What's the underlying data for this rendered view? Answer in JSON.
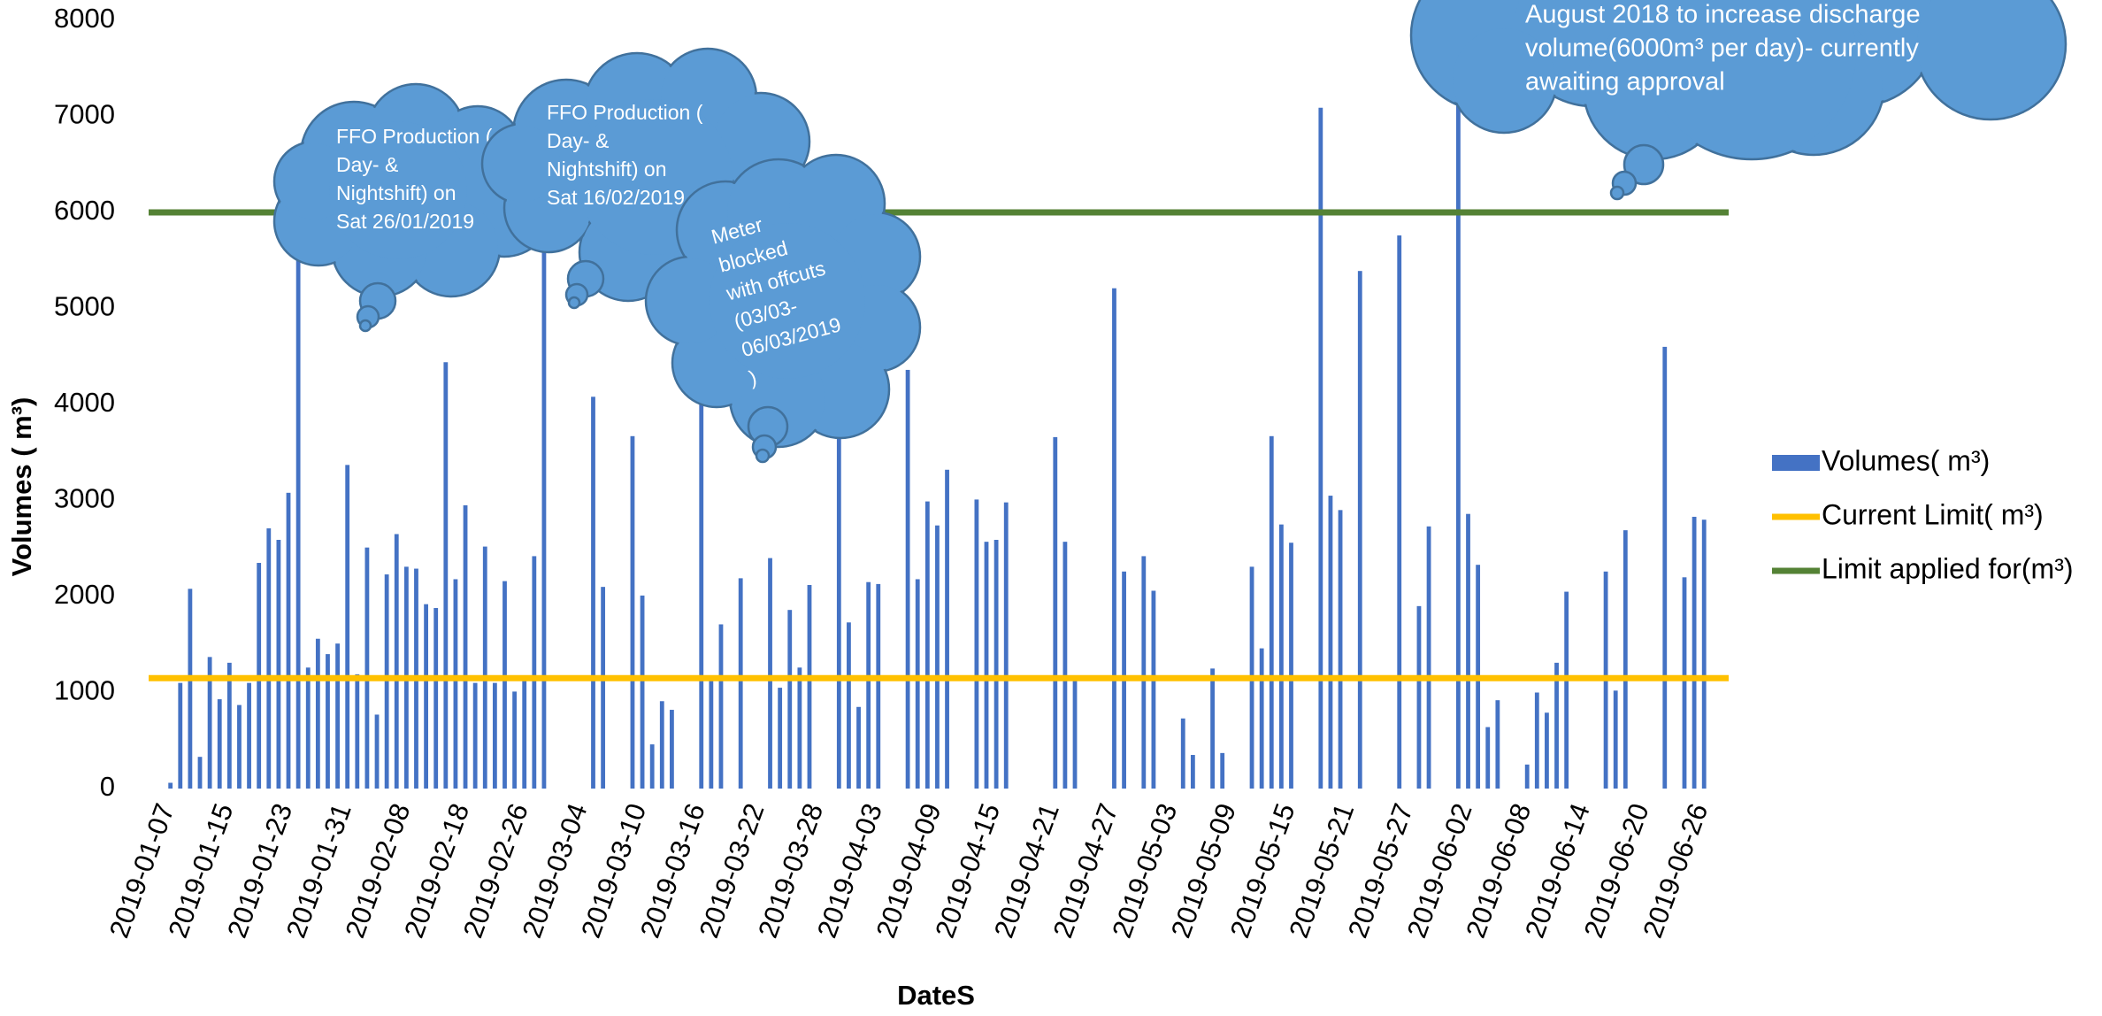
{
  "chart_data": {
    "type": "bar",
    "y_label": "Volumes ( m³)",
    "x_label": "DateS",
    "series": [
      {
        "name": "Volumes( m³)",
        "color": "#4472c4",
        "values": [
          0,
          60,
          1100,
          2080,
          330,
          1370,
          930,
          1310,
          870,
          1100,
          2350,
          2710,
          2590,
          3080,
          5530,
          1260,
          1560,
          1400,
          1510,
          3370,
          1190,
          2510,
          770,
          2230,
          2650,
          2310,
          2290,
          1920,
          1880,
          4440,
          2180,
          2950,
          1100,
          2520,
          1100,
          2160,
          1010,
          1150,
          2420,
          5700,
          0,
          0,
          0,
          0,
          4080,
          2100,
          0,
          0,
          3670,
          2010,
          460,
          910,
          820,
          0,
          0,
          4300,
          1150,
          1710,
          0,
          2190,
          0,
          0,
          2400,
          1050,
          1860,
          1260,
          2120,
          0,
          0,
          4300,
          1730,
          850,
          2150,
          2130,
          0,
          0,
          4360,
          2180,
          2990,
          2740,
          3320,
          0,
          0,
          3010,
          2570,
          2590,
          2980,
          0,
          0,
          0,
          0,
          3660,
          2570,
          1150,
          0,
          0,
          0,
          5210,
          2260,
          0,
          2420,
          2060,
          0,
          0,
          730,
          350,
          0,
          1250,
          370,
          0,
          0,
          2310,
          1460,
          3670,
          2750,
          2560,
          0,
          0,
          7090,
          3050,
          2900,
          0,
          5390,
          0,
          0,
          0,
          5760,
          0,
          1900,
          2730,
          0,
          0,
          7200,
          2860,
          2330,
          640,
          920,
          0,
          0,
          250,
          1000,
          790,
          1310,
          2050,
          0,
          0,
          0,
          2260,
          1020,
          2690,
          0,
          0,
          0,
          4600,
          0,
          2200,
          2830,
          2800,
          0,
          0
        ]
      }
    ],
    "reference_lines": [
      {
        "name": "Current Limit( m³)",
        "color": "#ffc000",
        "value": 1150
      },
      {
        "name": "Limit applied for(m³)",
        "color": "#548235",
        "value": 6000
      }
    ],
    "categories": [
      "2019-01-07",
      null,
      null,
      null,
      null,
      null,
      "2019-01-15",
      null,
      null,
      null,
      null,
      null,
      "2019-01-23",
      null,
      null,
      null,
      null,
      null,
      "2019-01-31",
      null,
      null,
      null,
      null,
      null,
      "2019-02-08",
      null,
      null,
      null,
      null,
      null,
      "2019-02-18",
      null,
      null,
      null,
      null,
      null,
      "2019-02-26",
      null,
      null,
      null,
      null,
      null,
      "2019-03-04",
      null,
      null,
      null,
      null,
      null,
      "2019-03-10",
      null,
      null,
      null,
      null,
      null,
      "2019-03-16",
      null,
      null,
      null,
      null,
      null,
      "2019-03-22",
      null,
      null,
      null,
      null,
      null,
      "2019-03-28",
      null,
      null,
      null,
      null,
      null,
      "2019-04-03",
      null,
      null,
      null,
      null,
      null,
      "2019-04-09",
      null,
      null,
      null,
      null,
      null,
      "2019-04-15",
      null,
      null,
      null,
      null,
      null,
      "2019-04-21",
      null,
      null,
      null,
      null,
      null,
      "2019-04-27",
      null,
      null,
      null,
      null,
      null,
      "2019-05-03",
      null,
      null,
      null,
      null,
      null,
      "2019-05-09",
      null,
      null,
      null,
      null,
      null,
      "2019-05-15",
      null,
      null,
      null,
      null,
      null,
      "2019-05-21",
      null,
      null,
      null,
      null,
      null,
      "2019-05-27",
      null,
      null,
      null,
      null,
      null,
      "2019-06-02",
      null,
      null,
      null,
      null,
      null,
      "2019-06-08",
      null,
      null,
      null,
      null,
      null,
      "2019-06-14",
      null,
      null,
      null,
      null,
      null,
      "2019-06-20",
      null,
      null,
      null,
      null,
      null,
      "2019-06-26",
      null,
      null,
      null
    ],
    "ylim": [
      0,
      8000
    ],
    "yticks": [
      0,
      1000,
      2000,
      3000,
      4000,
      5000,
      6000,
      7000,
      8000
    ],
    "annotations": [
      {
        "lines": [
          "FFO Production (",
          "Day- &",
          "Nightshift)  on",
          "Sat 26/01/2019"
        ]
      },
      {
        "lines": [
          "FFO Production (",
          "Day- &",
          "Nightshift)  on",
          "Sat 16/02/2019"
        ]
      },
      {
        "lines": [
          "Meter",
          "blocked",
          "with offcuts",
          "(03/03-",
          "06/03/2019",
          ")"
        ]
      },
      {
        "lines": [
          "August 2018 to increase discharge",
          "volume(6000m³ per day)- currently",
          "awaiting approval"
        ]
      }
    ]
  }
}
